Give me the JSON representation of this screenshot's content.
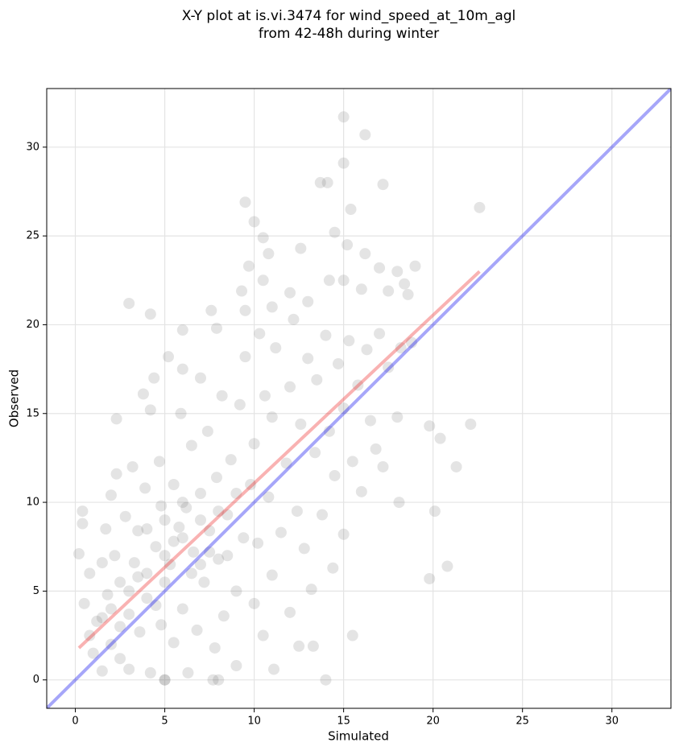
{
  "chart_data": {
    "type": "scatter",
    "title": "X-Y plot at is.vi.3474 for wind_speed_at_10m_agl",
    "subtitle": "from 42-48h during winter",
    "x_label": "Simulated",
    "y_label": "Observed",
    "xlim": [
      -1.6,
      33.3
    ],
    "ylim": [
      -1.6,
      33.3
    ],
    "xticks": [
      0,
      5,
      10,
      15,
      20,
      25,
      30
    ],
    "yticks": [
      0,
      5,
      10,
      15,
      20,
      25,
      30
    ],
    "grid": true,
    "points": {
      "color": "#555555",
      "x": [
        15,
        16.2,
        13.7,
        14.1,
        15,
        9.5,
        10,
        22.6,
        17.2,
        15.4,
        3,
        4.2,
        19.8,
        20.8,
        20.1,
        21.3,
        15.5,
        14,
        8,
        7.7,
        5,
        22.1,
        19.8,
        20.4,
        18.1,
        11.1,
        12.5,
        13.3,
        2.3,
        4.2,
        6,
        7.6,
        7.9,
        9.5,
        9.7,
        10.5,
        10.8,
        12.6,
        14.5,
        15.2,
        16.2,
        17,
        18,
        18.4,
        19,
        18.6,
        17.5,
        16,
        15,
        14.2,
        13,
        12,
        11,
        10.5,
        9.3,
        0.2,
        0.4,
        0.4,
        0.5,
        0.8,
        0.8,
        1,
        1.2,
        1.5,
        1.5,
        1.7,
        1.8,
        2,
        2,
        2.2,
        2.3,
        2.5,
        2.5,
        2.8,
        3,
        3,
        3.2,
        3.3,
        3.5,
        3.6,
        3.8,
        3.9,
        4,
        4.2,
        4.4,
        4.5,
        4.7,
        4.8,
        4.8,
        5,
        5,
        5.2,
        5.3,
        5.5,
        5.5,
        5.8,
        5.9,
        6,
        6,
        6.2,
        6.3,
        6.5,
        6.6,
        6.8,
        7,
        7,
        7.2,
        7.4,
        7.5,
        7.8,
        7.9,
        8,
        8.2,
        8.3,
        8.5,
        8.7,
        9,
        9,
        9.2,
        9.4,
        9.5,
        9.8,
        10,
        10,
        10.2,
        10.3,
        10.5,
        10.6,
        10.8,
        11,
        11,
        11.2,
        11.5,
        11.8,
        12,
        12,
        12.2,
        12.4,
        12.6,
        12.8,
        13,
        13.2,
        13.4,
        13.5,
        13.8,
        14,
        14.2,
        14.4,
        14.5,
        14.7,
        15,
        15,
        15.3,
        15.5,
        15.8,
        16,
        16.3,
        16.5,
        16.8,
        17,
        17.2,
        17.5,
        18,
        18.2,
        18.8,
        2,
        3,
        4,
        5,
        6,
        7,
        3.5,
        4.5,
        5.5,
        6.5,
        7.5,
        8.5,
        2.5,
        1.5,
        4,
        5,
        6,
        7,
        8,
        9
      ],
      "y": [
        31.7,
        30.7,
        28,
        28,
        29.1,
        26.9,
        25.8,
        26.6,
        27.9,
        26.5,
        21.2,
        20.6,
        5.7,
        6.4,
        9.5,
        12,
        2.5,
        0,
        0,
        0,
        0,
        14.4,
        14.3,
        13.6,
        10,
        0.6,
        1.9,
        1.9,
        14.7,
        15.2,
        19.7,
        20.8,
        19.8,
        20.8,
        23.3,
        24.9,
        24,
        24.3,
        25.2,
        24.5,
        24,
        23.2,
        23,
        22.3,
        23.3,
        21.7,
        21.9,
        22,
        22.5,
        22.5,
        21.3,
        21.8,
        21,
        22.5,
        21.9,
        7.1,
        9.5,
        8.8,
        4.3,
        6,
        2.5,
        1.5,
        3.3,
        6.6,
        0.5,
        8.5,
        4.8,
        2,
        10.4,
        7,
        11.6,
        5.5,
        1.2,
        9.2,
        3.7,
        0.6,
        12,
        6.6,
        8.4,
        2.7,
        16.1,
        10.8,
        4.6,
        0.4,
        17,
        7.5,
        12.3,
        3.1,
        9.8,
        5.5,
        0,
        18.2,
        6.5,
        11,
        2.1,
        8.6,
        15,
        4,
        17.5,
        9.7,
        0.4,
        13.2,
        7.2,
        2.8,
        10.5,
        17,
        5.5,
        14,
        8.4,
        1.8,
        11.4,
        6.8,
        16,
        3.6,
        9.3,
        12.4,
        5,
        0.8,
        15.5,
        8,
        18.2,
        11,
        4.3,
        13.3,
        7.7,
        19.5,
        2.5,
        16,
        10.3,
        14.8,
        5.9,
        18.7,
        8.3,
        12.2,
        3.8,
        16.5,
        20.3,
        9.5,
        14.4,
        7.4,
        18.1,
        5.1,
        12.8,
        16.9,
        9.3,
        19.4,
        14,
        6.3,
        11.5,
        17.8,
        15.3,
        8.2,
        19.1,
        12.3,
        16.6,
        10.6,
        18.6,
        14.6,
        13,
        19.5,
        12,
        17.6,
        14.8,
        18.7,
        19,
        4,
        5,
        6,
        7,
        8,
        9,
        5.8,
        4.2,
        7.8,
        6,
        7.2,
        7,
        3,
        3.5,
        8.5,
        9,
        10,
        6.5,
        9.5,
        10.5
      ]
    },
    "lines": [
      {
        "color": "#0000ee",
        "x": [
          -1.6,
          33.3
        ],
        "y": [
          -1.6,
          33.3
        ]
      },
      {
        "color": "#ee2222",
        "x": [
          0.2,
          22.6
        ],
        "y": [
          1.8,
          23.0
        ]
      }
    ]
  }
}
